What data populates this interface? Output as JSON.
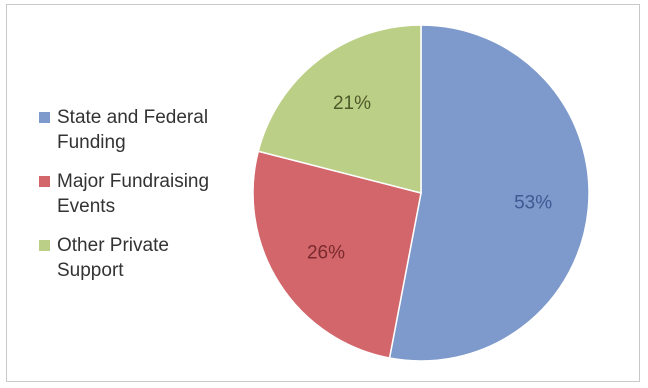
{
  "chart_data": {
    "type": "pie",
    "start_angle_deg": 0,
    "direction": "clockwise",
    "slices": [
      {
        "name": "State and Federal Funding",
        "value": 53,
        "label": "53%",
        "color": "#7e99cb",
        "label_color": "#3d5a93"
      },
      {
        "name": "Major Fundraising Events",
        "value": 26,
        "label": "26%",
        "color": "#d2666a",
        "label_color": "#7a2a2e"
      },
      {
        "name": "Other Private Support",
        "value": 21,
        "label": "21%",
        "color": "#bccf86",
        "label_color": "#4f5a2a"
      }
    ],
    "legend_position": "left"
  }
}
